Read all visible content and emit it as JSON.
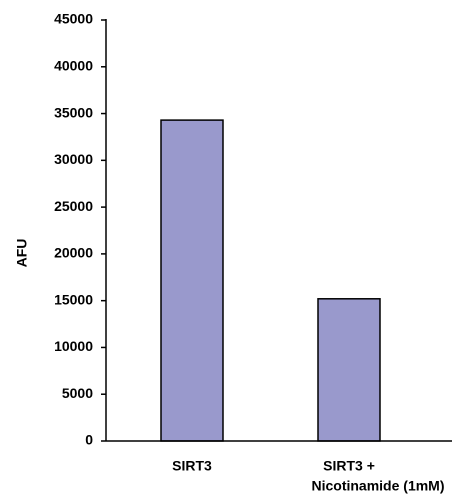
{
  "chart_data": {
    "type": "bar",
    "ylabel": "AFU",
    "ylim": [
      0,
      45000
    ],
    "yticks": [
      0,
      5000,
      10000,
      15000,
      20000,
      25000,
      30000,
      35000,
      40000,
      45000
    ],
    "categories": [
      [
        "SIRT3"
      ],
      [
        "SIRT3 +",
        "Nicotinamide (1mM)"
      ]
    ],
    "values": [
      34300,
      15200
    ],
    "grid": false,
    "legend": "none",
    "bar_color": "#9999cc",
    "bar_edge_color": "#000000"
  }
}
